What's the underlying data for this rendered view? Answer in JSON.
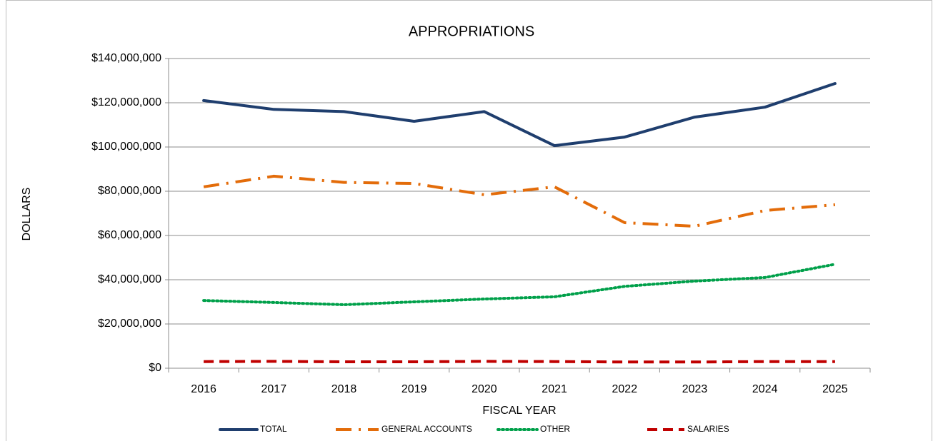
{
  "chart_data": {
    "type": "line",
    "title": "APPROPRIATIONS",
    "x_label": "FISCAL YEAR",
    "y_label": "DOLLARS",
    "categories": [
      "2016",
      "2017",
      "2018",
      "2019",
      "2020",
      "2021",
      "2022",
      "2023",
      "2024",
      "2025"
    ],
    "series": [
      {
        "name": "TOTAL",
        "color": "#1f3e6e",
        "dash": "solid",
        "values": [
          121000000,
          117000000,
          116000000,
          111600000,
          116000000,
          100600000,
          104500000,
          113500000,
          118000000,
          128700000
        ]
      },
      {
        "name": "GENERAL ACCOUNTS",
        "color": "#e36c0a",
        "dash": "dashdot",
        "values": [
          82000000,
          86800000,
          84000000,
          83500000,
          78400000,
          82000000,
          65800000,
          64200000,
          71300000,
          73900000
        ]
      },
      {
        "name": "OTHER",
        "color": "#00a04a",
        "dash": "dot",
        "values": [
          30600000,
          29700000,
          28700000,
          30000000,
          31300000,
          32300000,
          37000000,
          39400000,
          41000000,
          47000000
        ]
      },
      {
        "name": "SALARIES",
        "color": "#c00000",
        "dash": "dash",
        "values": [
          3000000,
          3100000,
          2900000,
          2900000,
          3100000,
          3000000,
          2800000,
          2800000,
          3000000,
          3000000
        ]
      }
    ],
    "ylim": [
      0,
      140000000
    ],
    "yticks": [
      {
        "value": 0,
        "label": "$0"
      },
      {
        "value": 20000000,
        "label": "$20,000,000"
      },
      {
        "value": 40000000,
        "label": "$40,000,000"
      },
      {
        "value": 60000000,
        "label": "$60,000,000"
      },
      {
        "value": 80000000,
        "label": "$80,000,000"
      },
      {
        "value": 100000000,
        "label": "$100,000,000"
      },
      {
        "value": 120000000,
        "label": "$120,000,000"
      },
      {
        "value": 140000000,
        "label": "$140,000,000"
      }
    ],
    "grid": true,
    "legend": "bottom"
  }
}
